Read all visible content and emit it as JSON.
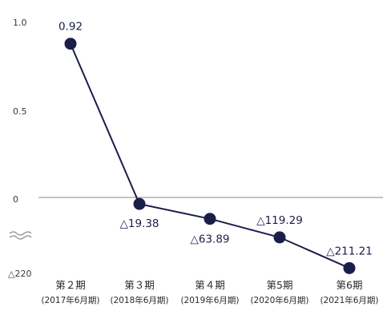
{
  "chart_data": {
    "type": "line",
    "title": "",
    "xlabel": "",
    "ylabel": "",
    "categories": [
      {
        "name": "第２期",
        "period": "(2017年6月期)"
      },
      {
        "name": "第３期",
        "period": "(2018年6月期)"
      },
      {
        "name": "第４期",
        "period": "(2019年6月期)"
      },
      {
        "name": "第5期",
        "period": "(2020年6月期)"
      },
      {
        "name": "第6期",
        "period": "(2021年6月期)"
      }
    ],
    "series": [
      {
        "values": [
          0.92,
          -19.38,
          -63.89,
          -119.29,
          -211.21
        ],
        "labels": [
          "0.92",
          "△19.38",
          "△63.89",
          "△119.29",
          "△211.21"
        ]
      }
    ],
    "y_ticks": [
      {
        "value": 1.0,
        "label": "1.0"
      },
      {
        "value": 0.5,
        "label": "0.5"
      },
      {
        "value": 0,
        "label": "0"
      },
      {
        "value": -220,
        "label": "△220"
      }
    ],
    "y_axis_broken": true,
    "grid": false,
    "colors": {
      "line": "#1a1f4a",
      "marker": "#1a1f4a",
      "axis": "#888888"
    }
  }
}
